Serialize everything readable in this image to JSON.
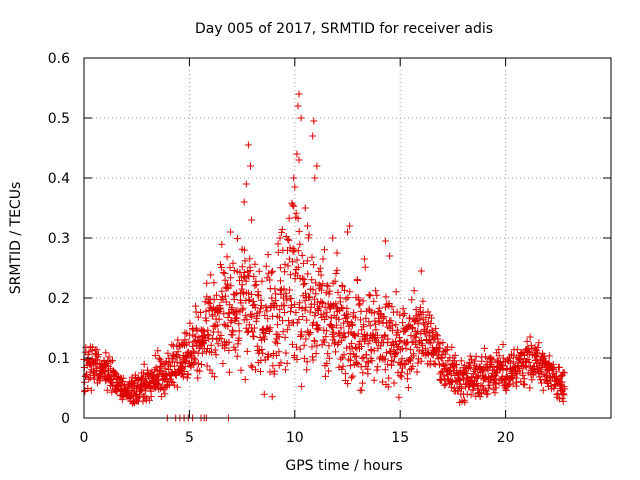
{
  "chart_data": {
    "type": "scatter",
    "title": "Day 005 of 2017, SRMTID for receiver adis",
    "xlabel": "GPS time / hours",
    "ylabel": "SRMTID / TECUs",
    "xlim": [
      0,
      25
    ],
    "ylim": [
      0,
      0.6
    ],
    "xticks": [
      0,
      5,
      10,
      15,
      20
    ],
    "xtick_labels": [
      "0",
      "5",
      "10",
      "15",
      "20"
    ],
    "yticks": [
      0,
      0.1,
      0.2,
      0.3,
      0.4,
      0.5,
      0.6
    ],
    "ytick_labels": [
      "0",
      "0.1",
      "0.2",
      "0.3",
      "0.4",
      "0.5",
      "0.6"
    ],
    "grid": true,
    "marker": "+",
    "color": "#e00000",
    "series": [
      {
        "name": "SRMTID",
        "trend": [
          [
            0.0,
            0.08
          ],
          [
            0.5,
            0.09
          ],
          [
            1.0,
            0.08
          ],
          [
            1.5,
            0.065
          ],
          [
            2.0,
            0.04
          ],
          [
            2.5,
            0.045
          ],
          [
            3.0,
            0.055
          ],
          [
            3.5,
            0.07
          ],
          [
            4.0,
            0.075
          ],
          [
            4.5,
            0.09
          ],
          [
            5.0,
            0.11
          ],
          [
            5.5,
            0.13
          ],
          [
            6.0,
            0.16
          ],
          [
            6.5,
            0.18
          ],
          [
            7.0,
            0.185
          ],
          [
            7.5,
            0.19
          ],
          [
            8.0,
            0.18
          ],
          [
            8.5,
            0.15
          ],
          [
            9.0,
            0.16
          ],
          [
            9.5,
            0.19
          ],
          [
            10.0,
            0.21
          ],
          [
            10.5,
            0.19
          ],
          [
            11.0,
            0.17
          ],
          [
            11.5,
            0.16
          ],
          [
            12.0,
            0.16
          ],
          [
            12.5,
            0.15
          ],
          [
            13.0,
            0.14
          ],
          [
            13.5,
            0.14
          ],
          [
            14.0,
            0.13
          ],
          [
            14.5,
            0.13
          ],
          [
            15.0,
            0.12
          ],
          [
            15.5,
            0.13
          ],
          [
            16.0,
            0.14
          ],
          [
            16.5,
            0.13
          ],
          [
            17.0,
            0.09
          ],
          [
            17.5,
            0.075
          ],
          [
            18.0,
            0.065
          ],
          [
            18.5,
            0.07
          ],
          [
            19.0,
            0.07
          ],
          [
            19.5,
            0.075
          ],
          [
            20.0,
            0.08
          ],
          [
            20.5,
            0.085
          ],
          [
            21.0,
            0.09
          ],
          [
            21.5,
            0.09
          ],
          [
            22.0,
            0.08
          ],
          [
            22.5,
            0.06
          ],
          [
            22.8,
            0.05
          ]
        ],
        "spread": [
          [
            0,
            0.035
          ],
          [
            2,
            0.02
          ],
          [
            3,
            0.03
          ],
          [
            5,
            0.04
          ],
          [
            6,
            0.07
          ],
          [
            8,
            0.09
          ],
          [
            10,
            0.12
          ],
          [
            12,
            0.08
          ],
          [
            14,
            0.07
          ],
          [
            16,
            0.06
          ],
          [
            17,
            0.035
          ],
          [
            23,
            0.035
          ]
        ],
        "peaks": [
          [
            7.8,
            0.455
          ],
          [
            7.9,
            0.42
          ],
          [
            7.7,
            0.39
          ],
          [
            7.6,
            0.36
          ],
          [
            6.95,
            0.31
          ],
          [
            7.95,
            0.33
          ],
          [
            10.2,
            0.54
          ],
          [
            10.15,
            0.52
          ],
          [
            10.3,
            0.5
          ],
          [
            10.1,
            0.44
          ],
          [
            10.2,
            0.43
          ],
          [
            9.95,
            0.4
          ],
          [
            10.0,
            0.385
          ],
          [
            10.9,
            0.495
          ],
          [
            10.85,
            0.47
          ],
          [
            11.05,
            0.42
          ],
          [
            10.95,
            0.4
          ],
          [
            9.9,
            0.355
          ],
          [
            10.5,
            0.35
          ],
          [
            10.6,
            0.32
          ],
          [
            12.6,
            0.32
          ],
          [
            12.5,
            0.31
          ],
          [
            14.3,
            0.295
          ],
          [
            16.0,
            0.245
          ],
          [
            11.8,
            0.3
          ],
          [
            9.3,
            0.3
          ],
          [
            13.3,
            0.265
          ],
          [
            14.5,
            0.27
          ],
          [
            12.0,
            0.275
          ]
        ],
        "zero_points": [
          3.95,
          4.35,
          4.55,
          4.75,
          4.95,
          5.15,
          5.55,
          5.7,
          5.8,
          6.85
        ]
      }
    ]
  }
}
